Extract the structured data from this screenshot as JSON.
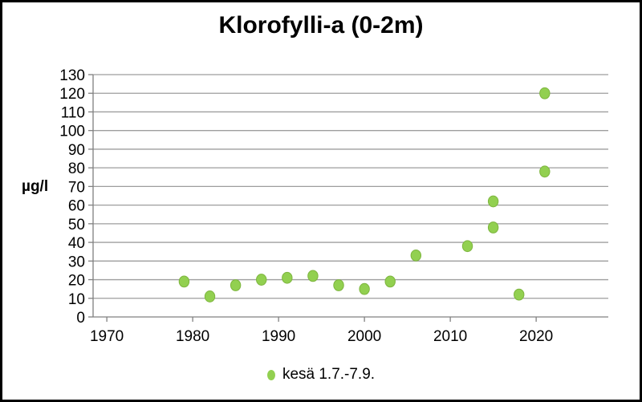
{
  "chart": {
    "title": "Klorofylli-a (0-2m)",
    "y_unit_label": "µg/l",
    "legend": {
      "label": "kesä 1.7.-7.9."
    },
    "colors": {
      "dot_fill": "#92D050",
      "dot_edge": "#7DB53E",
      "gridline": "#9E9E9E",
      "axis": "#808080",
      "text": "#000000",
      "frame_border": "#000000"
    }
  },
  "chart_data": {
    "type": "scatter",
    "title": "Klorofylli-a (0-2m)",
    "xlabel": "",
    "ylabel": "µg/l",
    "xlim": [
      1968.4,
      2028.4
    ],
    "ylim": [
      0,
      130
    ],
    "xticks": [
      1970,
      1980,
      1990,
      2000,
      2010,
      2020
    ],
    "yticks": [
      0,
      10,
      20,
      30,
      40,
      50,
      60,
      70,
      80,
      90,
      100,
      110,
      120,
      130
    ],
    "grid": "horizontal",
    "legend_position": "bottom-center",
    "series": [
      {
        "name": "kesä 1.7.-7.9.",
        "color": "#92D050",
        "edge_color": "#7DB53E",
        "points": [
          {
            "x": 1979,
            "y": 19
          },
          {
            "x": 1982,
            "y": 11
          },
          {
            "x": 1985,
            "y": 17
          },
          {
            "x": 1988,
            "y": 20
          },
          {
            "x": 1991,
            "y": 21
          },
          {
            "x": 1994,
            "y": 22
          },
          {
            "x": 1997,
            "y": 17
          },
          {
            "x": 2000,
            "y": 15
          },
          {
            "x": 2003,
            "y": 19
          },
          {
            "x": 2006,
            "y": 33
          },
          {
            "x": 2012,
            "y": 38
          },
          {
            "x": 2015,
            "y": 62
          },
          {
            "x": 2015,
            "y": 48
          },
          {
            "x": 2018,
            "y": 12
          },
          {
            "x": 2021,
            "y": 120
          },
          {
            "x": 2021,
            "y": 78
          }
        ]
      }
    ]
  }
}
